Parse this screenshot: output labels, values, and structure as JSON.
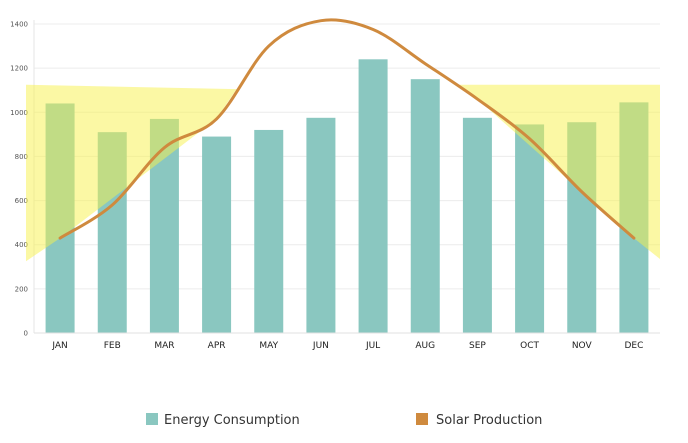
{
  "chart_data": {
    "type": "bar",
    "categories": [
      "JAN",
      "FEB",
      "MAR",
      "APR",
      "MAY",
      "JUN",
      "JUL",
      "AUG",
      "SEP",
      "OCT",
      "NOV",
      "DEC"
    ],
    "series": [
      {
        "name": "Energy Consumption",
        "type": "bar",
        "color": "#8ac7c0",
        "values": [
          1040,
          910,
          970,
          890,
          920,
          975,
          1240,
          1150,
          975,
          945,
          955,
          1045
        ]
      },
      {
        "name": "Solar Production",
        "type": "line",
        "color": "#cf8a3e",
        "values": [
          430,
          580,
          840,
          970,
          1300,
          1415,
          1375,
          1220,
          1060,
          880,
          640,
          430
        ]
      }
    ],
    "ylim": [
      0,
      1400
    ],
    "yticks": [
      0,
      200,
      400,
      600,
      800,
      1000,
      1200,
      1400
    ],
    "grid": true,
    "legend_position": "bottom",
    "highlight_regions": [
      {
        "from": "JAN",
        "to": "APR",
        "color": "#f7f24a"
      },
      {
        "from": "SEP",
        "to": "DEC",
        "color": "#f7f24a"
      }
    ],
    "title": "",
    "xlabel": "",
    "ylabel": ""
  }
}
